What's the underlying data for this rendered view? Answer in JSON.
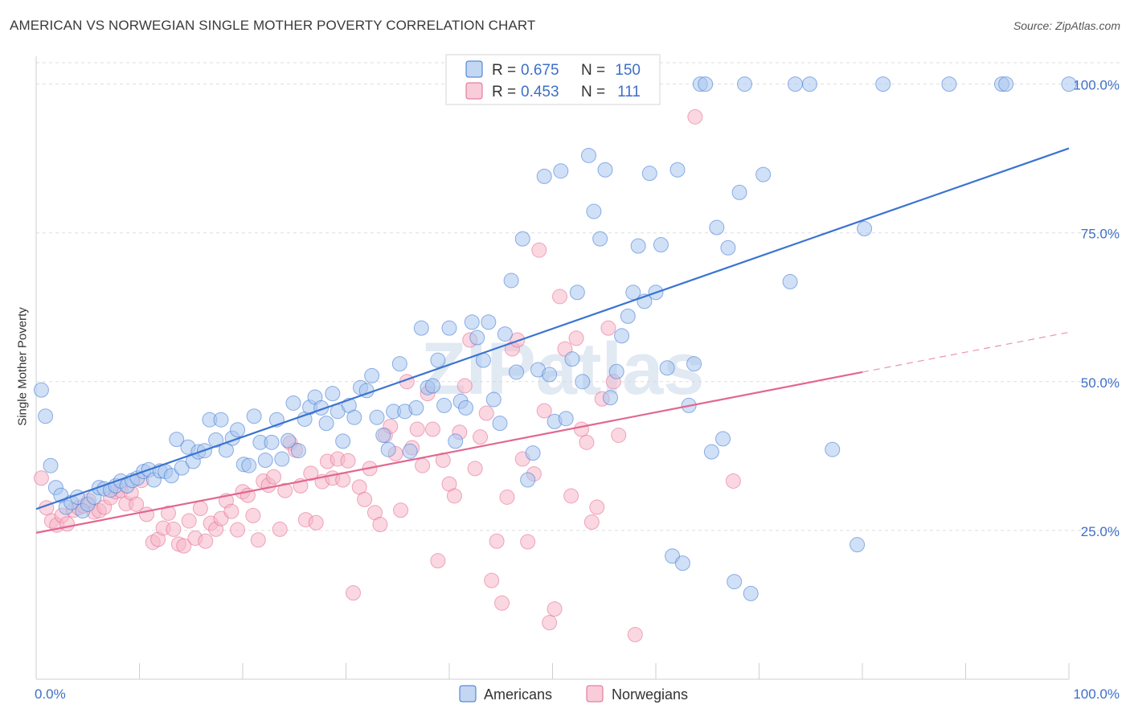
{
  "title": "AMERICAN VS NORWEGIAN SINGLE MOTHER POVERTY CORRELATION CHART",
  "source": "Source: ZipAtlas.com",
  "watermark": "ZIPatlas",
  "colors": {
    "americans_fill": "#a9c6ee",
    "americans_line": "#3a74d1",
    "norwegians_fill": "#f5b6c9",
    "norwegians_line": "#e2678f",
    "tick_text": "#3d6fc8"
  },
  "legend_top": {
    "americans": {
      "r_label": "R =",
      "r_value": "0.675",
      "n_label": "N =",
      "n_value": "150"
    },
    "norwegians": {
      "r_label": "R =",
      "r_value": "0.453",
      "n_label": "N =",
      "n_value": "111"
    }
  },
  "chart_data": {
    "type": "scatter",
    "title": "AMERICAN VS NORWEGIAN SINGLE MOTHER POVERTY CORRELATION CHART",
    "xlabel": "",
    "ylabel": "Single Mother Poverty",
    "xlim": [
      0,
      100
    ],
    "ylim": [
      0,
      104
    ],
    "x_tick_labels": [
      "0.0%",
      "100.0%"
    ],
    "y_ticks": [
      25,
      50,
      75,
      100
    ],
    "y_tick_labels": [
      "25.0%",
      "50.0%",
      "75.0%",
      "100.0%"
    ],
    "grid": true,
    "legend": [
      "Americans",
      "Norwegians"
    ],
    "series": [
      {
        "name": "Americans",
        "trendline": {
          "x": [
            0,
            100
          ],
          "y": [
            28.6,
            89.2
          ]
        },
        "points": [
          [
            0.5,
            48.6
          ],
          [
            0.9,
            44.2
          ],
          [
            1.4,
            35.9
          ],
          [
            1.9,
            32.2
          ],
          [
            2.4,
            30.9
          ],
          [
            2.9,
            28.9
          ],
          [
            3.4,
            29.7
          ],
          [
            4.0,
            30.6
          ],
          [
            4.5,
            28.3
          ],
          [
            5.0,
            29.4
          ],
          [
            5.6,
            30.6
          ],
          [
            6.1,
            32.2
          ],
          [
            6.6,
            32.0
          ],
          [
            7.2,
            31.8
          ],
          [
            7.7,
            32.5
          ],
          [
            8.2,
            33.3
          ],
          [
            8.8,
            32.5
          ],
          [
            9.3,
            33.4
          ],
          [
            9.8,
            33.8
          ],
          [
            10.4,
            34.9
          ],
          [
            10.9,
            35.2
          ],
          [
            11.4,
            33.5
          ],
          [
            12.0,
            35.0
          ],
          [
            12.5,
            34.9
          ],
          [
            13.1,
            34.2
          ],
          [
            13.6,
            40.3
          ],
          [
            14.1,
            35.5
          ],
          [
            14.7,
            39.0
          ],
          [
            15.2,
            36.6
          ],
          [
            15.7,
            38.2
          ],
          [
            16.3,
            38.4
          ],
          [
            16.8,
            43.6
          ],
          [
            17.4,
            40.2
          ],
          [
            17.9,
            43.6
          ],
          [
            18.4,
            38.5
          ],
          [
            19.0,
            40.5
          ],
          [
            19.5,
            41.9
          ],
          [
            20.1,
            36.1
          ],
          [
            20.6,
            35.9
          ],
          [
            21.1,
            44.2
          ],
          [
            21.7,
            39.8
          ],
          [
            22.2,
            36.8
          ],
          [
            22.8,
            39.8
          ],
          [
            23.3,
            43.6
          ],
          [
            23.8,
            37.0
          ],
          [
            24.4,
            40.1
          ],
          [
            24.9,
            46.4
          ],
          [
            25.4,
            38.4
          ],
          [
            26.0,
            43.7
          ],
          [
            26.5,
            45.7
          ],
          [
            27.0,
            47.4
          ],
          [
            27.6,
            45.6
          ],
          [
            28.1,
            43.0
          ],
          [
            28.7,
            48.0
          ],
          [
            29.2,
            45.0
          ],
          [
            29.7,
            40.0
          ],
          [
            30.3,
            46.0
          ],
          [
            30.8,
            44.0
          ],
          [
            31.4,
            49.0
          ],
          [
            32.0,
            48.5
          ],
          [
            32.5,
            51.0
          ],
          [
            33.0,
            44.0
          ],
          [
            33.6,
            41.0
          ],
          [
            34.1,
            38.6
          ],
          [
            34.6,
            45.0
          ],
          [
            35.2,
            53.0
          ],
          [
            35.7,
            45.0
          ],
          [
            36.2,
            38.3
          ],
          [
            36.8,
            45.6
          ],
          [
            37.3,
            59.0
          ],
          [
            37.9,
            49.0
          ],
          [
            38.4,
            49.3
          ],
          [
            38.9,
            53.6
          ],
          [
            39.5,
            46.0
          ],
          [
            40.0,
            59.0
          ],
          [
            40.6,
            40.0
          ],
          [
            41.1,
            46.7
          ],
          [
            41.6,
            45.6
          ],
          [
            42.2,
            60.0
          ],
          [
            42.7,
            57.4
          ],
          [
            43.3,
            53.6
          ],
          [
            43.8,
            60.0
          ],
          [
            44.3,
            47.0
          ],
          [
            44.9,
            43.0
          ],
          [
            45.4,
            58.0
          ],
          [
            46.0,
            67.0
          ],
          [
            46.5,
            51.6
          ],
          [
            47.1,
            74.0
          ],
          [
            47.6,
            33.5
          ],
          [
            48.1,
            38.0
          ],
          [
            48.6,
            52.0
          ],
          [
            49.2,
            84.5
          ],
          [
            49.7,
            51.2
          ],
          [
            50.2,
            43.3
          ],
          [
            50.8,
            85.4
          ],
          [
            51.3,
            43.8
          ],
          [
            51.9,
            53.8
          ],
          [
            52.4,
            65.0
          ],
          [
            52.9,
            50.0
          ],
          [
            53.5,
            88.0
          ],
          [
            54.0,
            78.6
          ],
          [
            54.6,
            74.0
          ],
          [
            55.1,
            85.6
          ],
          [
            55.6,
            47.3
          ],
          [
            56.2,
            51.7
          ],
          [
            56.7,
            57.7
          ],
          [
            57.3,
            61.0
          ],
          [
            57.8,
            65.0
          ],
          [
            58.3,
            72.8
          ],
          [
            58.9,
            63.5
          ],
          [
            59.4,
            85.0
          ],
          [
            60.0,
            65.0
          ],
          [
            60.5,
            73.0
          ],
          [
            61.1,
            52.3
          ],
          [
            61.6,
            20.7
          ],
          [
            62.1,
            85.6
          ],
          [
            62.6,
            19.5
          ],
          [
            63.2,
            46.0
          ],
          [
            63.7,
            53.0
          ],
          [
            64.3,
            100
          ],
          [
            64.8,
            100
          ],
          [
            65.4,
            38.2
          ],
          [
            65.9,
            75.9
          ],
          [
            66.5,
            40.4
          ],
          [
            67.0,
            72.5
          ],
          [
            67.6,
            16.4
          ],
          [
            68.1,
            81.8
          ],
          [
            68.6,
            100
          ],
          [
            69.2,
            14.4
          ],
          [
            70.4,
            84.8
          ],
          [
            73.0,
            66.8
          ],
          [
            73.5,
            100
          ],
          [
            74.9,
            100
          ],
          [
            77.1,
            38.6
          ],
          [
            79.5,
            22.6
          ],
          [
            80.2,
            75.7
          ],
          [
            82.0,
            100
          ],
          [
            88.4,
            100
          ],
          [
            93.5,
            100
          ],
          [
            93.9,
            100
          ],
          [
            100,
            100
          ]
        ]
      },
      {
        "name": "Norwegians",
        "trendline": {
          "x": [
            0,
            80
          ],
          "y": [
            24.6,
            51.6
          ]
        },
        "trendline_extension": {
          "x": [
            80,
            100
          ],
          "y": [
            51.6,
            58.3
          ]
        },
        "points": [
          [
            0.5,
            33.8
          ],
          [
            1.0,
            28.8
          ],
          [
            1.5,
            26.6
          ],
          [
            2.0,
            25.9
          ],
          [
            2.5,
            27.5
          ],
          [
            3.0,
            26.1
          ],
          [
            3.6,
            28.4
          ],
          [
            4.1,
            28.8
          ],
          [
            4.6,
            29.1
          ],
          [
            5.1,
            30.0
          ],
          [
            5.6,
            28.1
          ],
          [
            6.1,
            28.3
          ],
          [
            6.6,
            28.9
          ],
          [
            7.2,
            30.5
          ],
          [
            7.7,
            31.5
          ],
          [
            8.2,
            31.7
          ],
          [
            8.7,
            29.5
          ],
          [
            9.2,
            31.3
          ],
          [
            9.7,
            29.4
          ],
          [
            10.2,
            33.4
          ],
          [
            10.7,
            27.7
          ],
          [
            11.3,
            23.0
          ],
          [
            11.8,
            23.5
          ],
          [
            12.3,
            25.4
          ],
          [
            12.8,
            27.9
          ],
          [
            13.3,
            25.2
          ],
          [
            13.8,
            22.7
          ],
          [
            14.3,
            22.4
          ],
          [
            14.8,
            26.6
          ],
          [
            15.4,
            23.7
          ],
          [
            15.9,
            28.7
          ],
          [
            16.4,
            23.2
          ],
          [
            16.9,
            26.2
          ],
          [
            17.4,
            25.2
          ],
          [
            17.9,
            27.0
          ],
          [
            18.4,
            30.0
          ],
          [
            18.9,
            28.2
          ],
          [
            19.5,
            25.1
          ],
          [
            20.0,
            31.5
          ],
          [
            20.5,
            30.9
          ],
          [
            21.0,
            27.5
          ],
          [
            21.5,
            23.4
          ],
          [
            22.0,
            33.3
          ],
          [
            22.5,
            32.6
          ],
          [
            23.0,
            34.0
          ],
          [
            23.6,
            25.2
          ],
          [
            24.1,
            31.7
          ],
          [
            24.6,
            39.7
          ],
          [
            25.1,
            38.5
          ],
          [
            25.6,
            32.5
          ],
          [
            26.1,
            26.8
          ],
          [
            26.6,
            34.6
          ],
          [
            27.1,
            26.3
          ],
          [
            27.7,
            33.2
          ],
          [
            28.2,
            36.6
          ],
          [
            28.7,
            33.8
          ],
          [
            29.2,
            37.0
          ],
          [
            29.7,
            33.5
          ],
          [
            30.2,
            36.7
          ],
          [
            30.7,
            14.5
          ],
          [
            31.3,
            32.3
          ],
          [
            31.8,
            30.2
          ],
          [
            32.3,
            35.4
          ],
          [
            32.8,
            28.0
          ],
          [
            33.3,
            26.0
          ],
          [
            33.8,
            41.0
          ],
          [
            34.3,
            42.5
          ],
          [
            34.8,
            37.9
          ],
          [
            35.3,
            28.4
          ],
          [
            35.9,
            50.0
          ],
          [
            36.4,
            38.9
          ],
          [
            36.9,
            42.0
          ],
          [
            37.4,
            35.9
          ],
          [
            37.9,
            48.0
          ],
          [
            38.4,
            42.0
          ],
          [
            38.9,
            19.9
          ],
          [
            39.4,
            36.8
          ],
          [
            40.0,
            32.8
          ],
          [
            40.5,
            30.8
          ],
          [
            41.0,
            41.5
          ],
          [
            41.5,
            49.3
          ],
          [
            42.0,
            57.0
          ],
          [
            42.5,
            35.4
          ],
          [
            43.0,
            40.7
          ],
          [
            43.6,
            44.7
          ],
          [
            44.1,
            16.6
          ],
          [
            44.6,
            23.2
          ],
          [
            45.1,
            12.8
          ],
          [
            45.6,
            30.6
          ],
          [
            46.1,
            55.5
          ],
          [
            46.6,
            57.0
          ],
          [
            47.1,
            37.0
          ],
          [
            47.6,
            23.1
          ],
          [
            48.2,
            34.5
          ],
          [
            48.7,
            72.1
          ],
          [
            49.2,
            45.1
          ],
          [
            49.7,
            9.5
          ],
          [
            50.2,
            11.8
          ],
          [
            50.7,
            64.3
          ],
          [
            51.2,
            55.5
          ],
          [
            51.8,
            30.8
          ],
          [
            52.3,
            57.3
          ],
          [
            52.8,
            42.0
          ],
          [
            53.3,
            39.8
          ],
          [
            53.8,
            26.4
          ],
          [
            54.3,
            28.9
          ],
          [
            54.8,
            47.1
          ],
          [
            55.4,
            59.0
          ],
          [
            55.9,
            50.0
          ],
          [
            56.4,
            41.0
          ],
          [
            58.0,
            7.5
          ],
          [
            63.8,
            94.5
          ],
          [
            67.5,
            33.3
          ]
        ]
      }
    ]
  },
  "legend_bottom": {
    "americans": "Americans",
    "norwegians": "Norwegians"
  }
}
